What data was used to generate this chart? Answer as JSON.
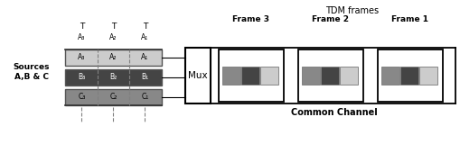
{
  "bg_color": "#ffffff",
  "sources_label": "Sources\nA,B & C",
  "mux_label": "Mux",
  "tdm_label": "TDM frames",
  "common_channel_label": "Common Channel",
  "frame_labels": [
    "Frame 3",
    "Frame 2",
    "Frame 1"
  ],
  "A_labels": [
    "A₃",
    "A₂",
    "A₁"
  ],
  "B_labels": [
    "B₃",
    "B₂",
    "B₁"
  ],
  "C_labels": [
    "C₃",
    "C₂",
    "C₁"
  ],
  "color_A": "#cccccc",
  "color_B": "#444444",
  "color_C": "#888888"
}
